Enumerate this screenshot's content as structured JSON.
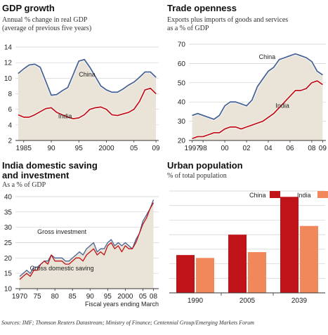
{
  "sources": "Sources: IMF; Thomson Reuters Datastream; Ministry of Finance; Centennial Group/Emerging Markets Forum",
  "colors": {
    "china": "#4a6496",
    "india": "#c0141a",
    "area": "#e9e4d7",
    "india_bar": "#f0885c"
  },
  "chart_data": [
    {
      "type": "line",
      "title": "GDP growth",
      "subtitle_lines": [
        "Annual % change in real GDP",
        "(average of previous five years)"
      ],
      "xlabel": "",
      "ylabel": "",
      "xlim": [
        1983.5,
        2009.5
      ],
      "ylim": [
        2,
        14
      ],
      "yticks": [
        2,
        4,
        6,
        8,
        10,
        12,
        14
      ],
      "xtick_values": [
        1985,
        1990,
        1995,
        2000,
        2005,
        2009
      ],
      "xtick_labels": [
        "1985",
        "90",
        "95",
        "2000",
        "05",
        "09"
      ],
      "grid": true,
      "shaded_area_under": "China",
      "series": [
        {
          "name": "China",
          "label_at": [
            1996.5,
            10.5
          ],
          "x": [
            1984,
            1985,
            1986,
            1987,
            1988,
            1989,
            1990,
            1991,
            1992,
            1993,
            1994,
            1995,
            1996,
            1997,
            1998,
            1999,
            2000,
            2001,
            2002,
            2003,
            2004,
            2005,
            2006,
            2007,
            2008,
            2009
          ],
          "y": [
            10.6,
            11.2,
            11.7,
            11.8,
            11.4,
            9.6,
            7.8,
            7.9,
            8.4,
            8.8,
            10.5,
            12.2,
            12.4,
            11.4,
            10.2,
            9.0,
            8.5,
            8.2,
            8.2,
            8.6,
            9.1,
            9.5,
            10.1,
            10.8,
            10.8,
            10.1
          ]
        },
        {
          "name": "India",
          "label_at": [
            1992.5,
            5.1
          ],
          "x": [
            1984,
            1985,
            1986,
            1987,
            1988,
            1989,
            1990,
            1991,
            1992,
            1993,
            1994,
            1995,
            1996,
            1997,
            1998,
            1999,
            2000,
            2001,
            2002,
            2003,
            2004,
            2005,
            2006,
            2007,
            2008,
            2009
          ],
          "y": [
            5.3,
            5.0,
            5.0,
            5.3,
            5.7,
            6.1,
            6.2,
            5.6,
            5.3,
            5.0,
            4.8,
            4.9,
            5.3,
            6.0,
            6.2,
            6.3,
            6.0,
            5.3,
            5.2,
            5.4,
            5.6,
            6.0,
            7.0,
            8.5,
            8.7,
            8.0
          ]
        }
      ]
    },
    {
      "type": "line",
      "title": "Trade openness",
      "subtitle_lines": [
        "Exports plus imports of goods and services",
        "as a % of GDP"
      ],
      "xlabel": "",
      "ylabel": "",
      "xlim": [
        1996.7,
        2009.3
      ],
      "ylim": [
        20,
        70
      ],
      "yticks": [
        20,
        30,
        40,
        50,
        60,
        70
      ],
      "xtick_values": [
        1997,
        1998,
        2000,
        2002,
        2004,
        2006,
        2008,
        2009
      ],
      "xtick_labels": [
        "1997",
        "98",
        "00",
        "02",
        "04",
        "06",
        "08",
        "09"
      ],
      "grid": true,
      "shaded_area_under": "China",
      "series": [
        {
          "name": "China",
          "label_at": [
            2003.9,
            63.5
          ],
          "x": [
            1997,
            1997.5,
            1998,
            1998.5,
            1999,
            1999.5,
            2000,
            2000.5,
            2001,
            2001.5,
            2002,
            2002.5,
            2003,
            2003.5,
            2004,
            2004.5,
            2005,
            2005.5,
            2006,
            2006.5,
            2007,
            2007.5,
            2008,
            2008.5,
            2009
          ],
          "y": [
            33,
            34,
            33,
            32,
            31,
            33,
            38,
            40,
            40,
            39,
            38,
            41,
            48,
            52,
            56,
            58,
            62,
            63,
            64,
            65,
            64,
            63,
            61,
            56,
            54
          ]
        },
        {
          "name": "India",
          "label_at": [
            2005.3,
            38
          ],
          "x": [
            1997,
            1997.5,
            1998,
            1998.5,
            1999,
            1999.5,
            2000,
            2000.5,
            2001,
            2001.5,
            2002,
            2002.5,
            2003,
            2003.5,
            2004,
            2004.5,
            2005,
            2005.5,
            2006,
            2006.5,
            2007,
            2007.5,
            2008,
            2008.5,
            2009
          ],
          "y": [
            21,
            22,
            22,
            23,
            24,
            24,
            26,
            27,
            27,
            26,
            27,
            28,
            29,
            30,
            32,
            34,
            37,
            40,
            43,
            46,
            46,
            47,
            50,
            51,
            49
          ]
        }
      ]
    },
    {
      "type": "line",
      "title_lines": [
        "India domestic saving",
        "and investment"
      ],
      "subtitle": "As a % of GDP",
      "xlabel": "Fiscal years ending March",
      "ylabel": "",
      "xlim": [
        1968.8,
        2009.5
      ],
      "ylim": [
        10,
        40
      ],
      "yticks": [
        10,
        15,
        20,
        25,
        30,
        35,
        40
      ],
      "xtick_values": [
        1970,
        1975,
        1980,
        1985,
        1990,
        1995,
        2000,
        2005,
        2008
      ],
      "xtick_labels": [
        "1970",
        "75",
        "80",
        "85",
        "90",
        "95",
        "2000",
        "05",
        "08"
      ],
      "grid": true,
      "shaded_area_under": "Gross investment",
      "series": [
        {
          "name": "Gross investment",
          "label_at": [
            1982,
            28.5
          ],
          "x": [
            1970,
            1971,
            1972,
            1973,
            1974,
            1975,
            1976,
            1977,
            1978,
            1979,
            1980,
            1981,
            1982,
            1983,
            1984,
            1985,
            1986,
            1987,
            1988,
            1989,
            1990,
            1991,
            1992,
            1993,
            1994,
            1995,
            1996,
            1997,
            1998,
            1999,
            2000,
            2001,
            2002,
            2003,
            2004,
            2005,
            2006,
            2007,
            2008
          ],
          "y": [
            14,
            15,
            16,
            15,
            17,
            17,
            18,
            19,
            19,
            21,
            20,
            20,
            20,
            19,
            19,
            20,
            21,
            22,
            21,
            23,
            24,
            25,
            22,
            23,
            23,
            25,
            26,
            24,
            25,
            24,
            25,
            24,
            23,
            26,
            28,
            32,
            34,
            36,
            39
          ]
        },
        {
          "name": "Gross domestic saving",
          "label_at": [
            1982,
            16.6
          ],
          "x": [
            1970,
            1971,
            1972,
            1973,
            1974,
            1975,
            1976,
            1977,
            1978,
            1979,
            1980,
            1981,
            1982,
            1983,
            1984,
            1985,
            1986,
            1987,
            1988,
            1989,
            1990,
            1991,
            1992,
            1993,
            1994,
            1995,
            1996,
            1997,
            1998,
            1999,
            2000,
            2001,
            2002,
            2003,
            2004,
            2005,
            2006,
            2007,
            2008
          ],
          "y": [
            13,
            14,
            15,
            14,
            16,
            16,
            18,
            19,
            18,
            21,
            19,
            19,
            19,
            18,
            18,
            19,
            20,
            20,
            19,
            21,
            22,
            23,
            21,
            22,
            21,
            24,
            25,
            23,
            24,
            22,
            24,
            23,
            23,
            25,
            28,
            31,
            33,
            36,
            38
          ]
        }
      ]
    },
    {
      "type": "bar",
      "title": "Urban population",
      "subtitle": "% of total population",
      "xlabel": "",
      "ylabel": "",
      "categories": [
        "1990",
        "2005",
        "2039"
      ],
      "ylim": [
        0,
        70
      ],
      "grid": true,
      "legend": "top-right",
      "series": [
        {
          "name": "China",
          "values": [
            26,
            40,
            66
          ]
        },
        {
          "name": "India",
          "values": [
            24,
            28,
            46
          ]
        }
      ]
    }
  ]
}
